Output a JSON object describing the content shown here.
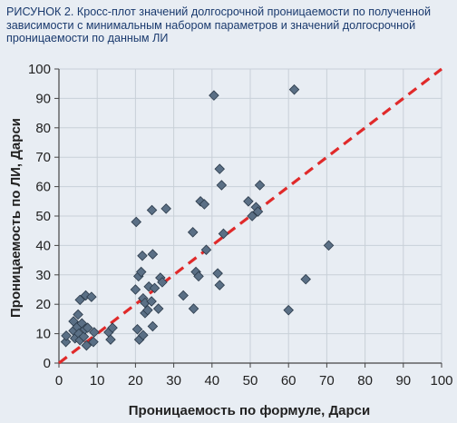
{
  "caption": {
    "label": "РИСУНОК 2.",
    "text": "Кросс-плот значений долгосрочной проницаемости по полученной зависимости с минимальным набором параметров и значений долгосрочной проницаемости по данным ЛИ"
  },
  "colors": {
    "background": "#e8edf3",
    "caption_text": "#1a3a6e",
    "marker_fill": "#5a6f85",
    "marker_stroke": "#2b3a4a",
    "reference_line": "#e02a2a",
    "grid": "#c8d0d8"
  },
  "chart_data": {
    "type": "scatter",
    "title": "",
    "xlabel": "Проницаемость по формуле, Дарси",
    "ylabel": "Проницаемость по ЛИ, Дарси",
    "xlim": [
      0,
      100
    ],
    "ylim": [
      0,
      100
    ],
    "xticks": [
      0,
      10,
      20,
      30,
      40,
      50,
      60,
      70,
      80,
      90,
      100
    ],
    "yticks": [
      0,
      10,
      20,
      30,
      40,
      50,
      60,
      70,
      80,
      90,
      100
    ],
    "grid": true,
    "marker": "diamond",
    "reference_line": {
      "style": "dashed",
      "from": [
        0,
        0
      ],
      "to": [
        100,
        100
      ]
    },
    "points": [
      [
        1.8,
        7.2
      ],
      [
        1.9,
        9.3
      ],
      [
        3.8,
        11.0
      ],
      [
        3.8,
        14.2
      ],
      [
        4.2,
        8.4
      ],
      [
        4.8,
        12.3
      ],
      [
        5.0,
        16.5
      ],
      [
        5.2,
        10.0
      ],
      [
        5.5,
        7.8
      ],
      [
        5.5,
        21.5
      ],
      [
        6.0,
        13.5
      ],
      [
        6.5,
        9.0
      ],
      [
        6.8,
        11.5
      ],
      [
        7.0,
        23.0
      ],
      [
        7.2,
        6.0
      ],
      [
        7.5,
        12.0
      ],
      [
        8.5,
        22.5
      ],
      [
        9.0,
        7.2
      ],
      [
        9.2,
        10.5
      ],
      [
        13.0,
        10.5
      ],
      [
        13.5,
        8.0
      ],
      [
        14.0,
        12.0
      ],
      [
        20.0,
        25.0
      ],
      [
        20.2,
        48.0
      ],
      [
        20.5,
        11.5
      ],
      [
        20.8,
        29.5
      ],
      [
        21.0,
        8.0
      ],
      [
        21.5,
        31.0
      ],
      [
        21.8,
        36.5
      ],
      [
        22.0,
        9.5
      ],
      [
        22.0,
        22.0
      ],
      [
        22.5,
        17.0
      ],
      [
        22.5,
        20.5
      ],
      [
        23.2,
        18.0
      ],
      [
        23.5,
        26.0
      ],
      [
        24.3,
        52.0
      ],
      [
        24.5,
        37.0
      ],
      [
        24.5,
        12.5
      ],
      [
        25.0,
        25.5
      ],
      [
        24.2,
        21.0
      ],
      [
        26.0,
        18.5
      ],
      [
        26.5,
        29.0
      ],
      [
        27.0,
        27.5
      ],
      [
        28.0,
        52.5
      ],
      [
        32.5,
        23.0
      ],
      [
        35.0,
        44.5
      ],
      [
        35.2,
        18.5
      ],
      [
        35.8,
        31.0
      ],
      [
        36.5,
        29.5
      ],
      [
        37.0,
        55.0
      ],
      [
        38.0,
        54.0
      ],
      [
        38.5,
        38.5
      ],
      [
        40.5,
        91.0
      ],
      [
        41.5,
        30.5
      ],
      [
        42.0,
        26.5
      ],
      [
        42.0,
        66.0
      ],
      [
        42.5,
        60.5
      ],
      [
        43.0,
        44.0
      ],
      [
        49.5,
        55.0
      ],
      [
        50.5,
        50.0
      ],
      [
        51.5,
        53.0
      ],
      [
        52.0,
        51.5
      ],
      [
        52.5,
        60.5
      ],
      [
        60.0,
        18.0
      ],
      [
        61.5,
        93.0
      ],
      [
        64.5,
        28.5
      ],
      [
        70.5,
        40.0
      ]
    ]
  }
}
